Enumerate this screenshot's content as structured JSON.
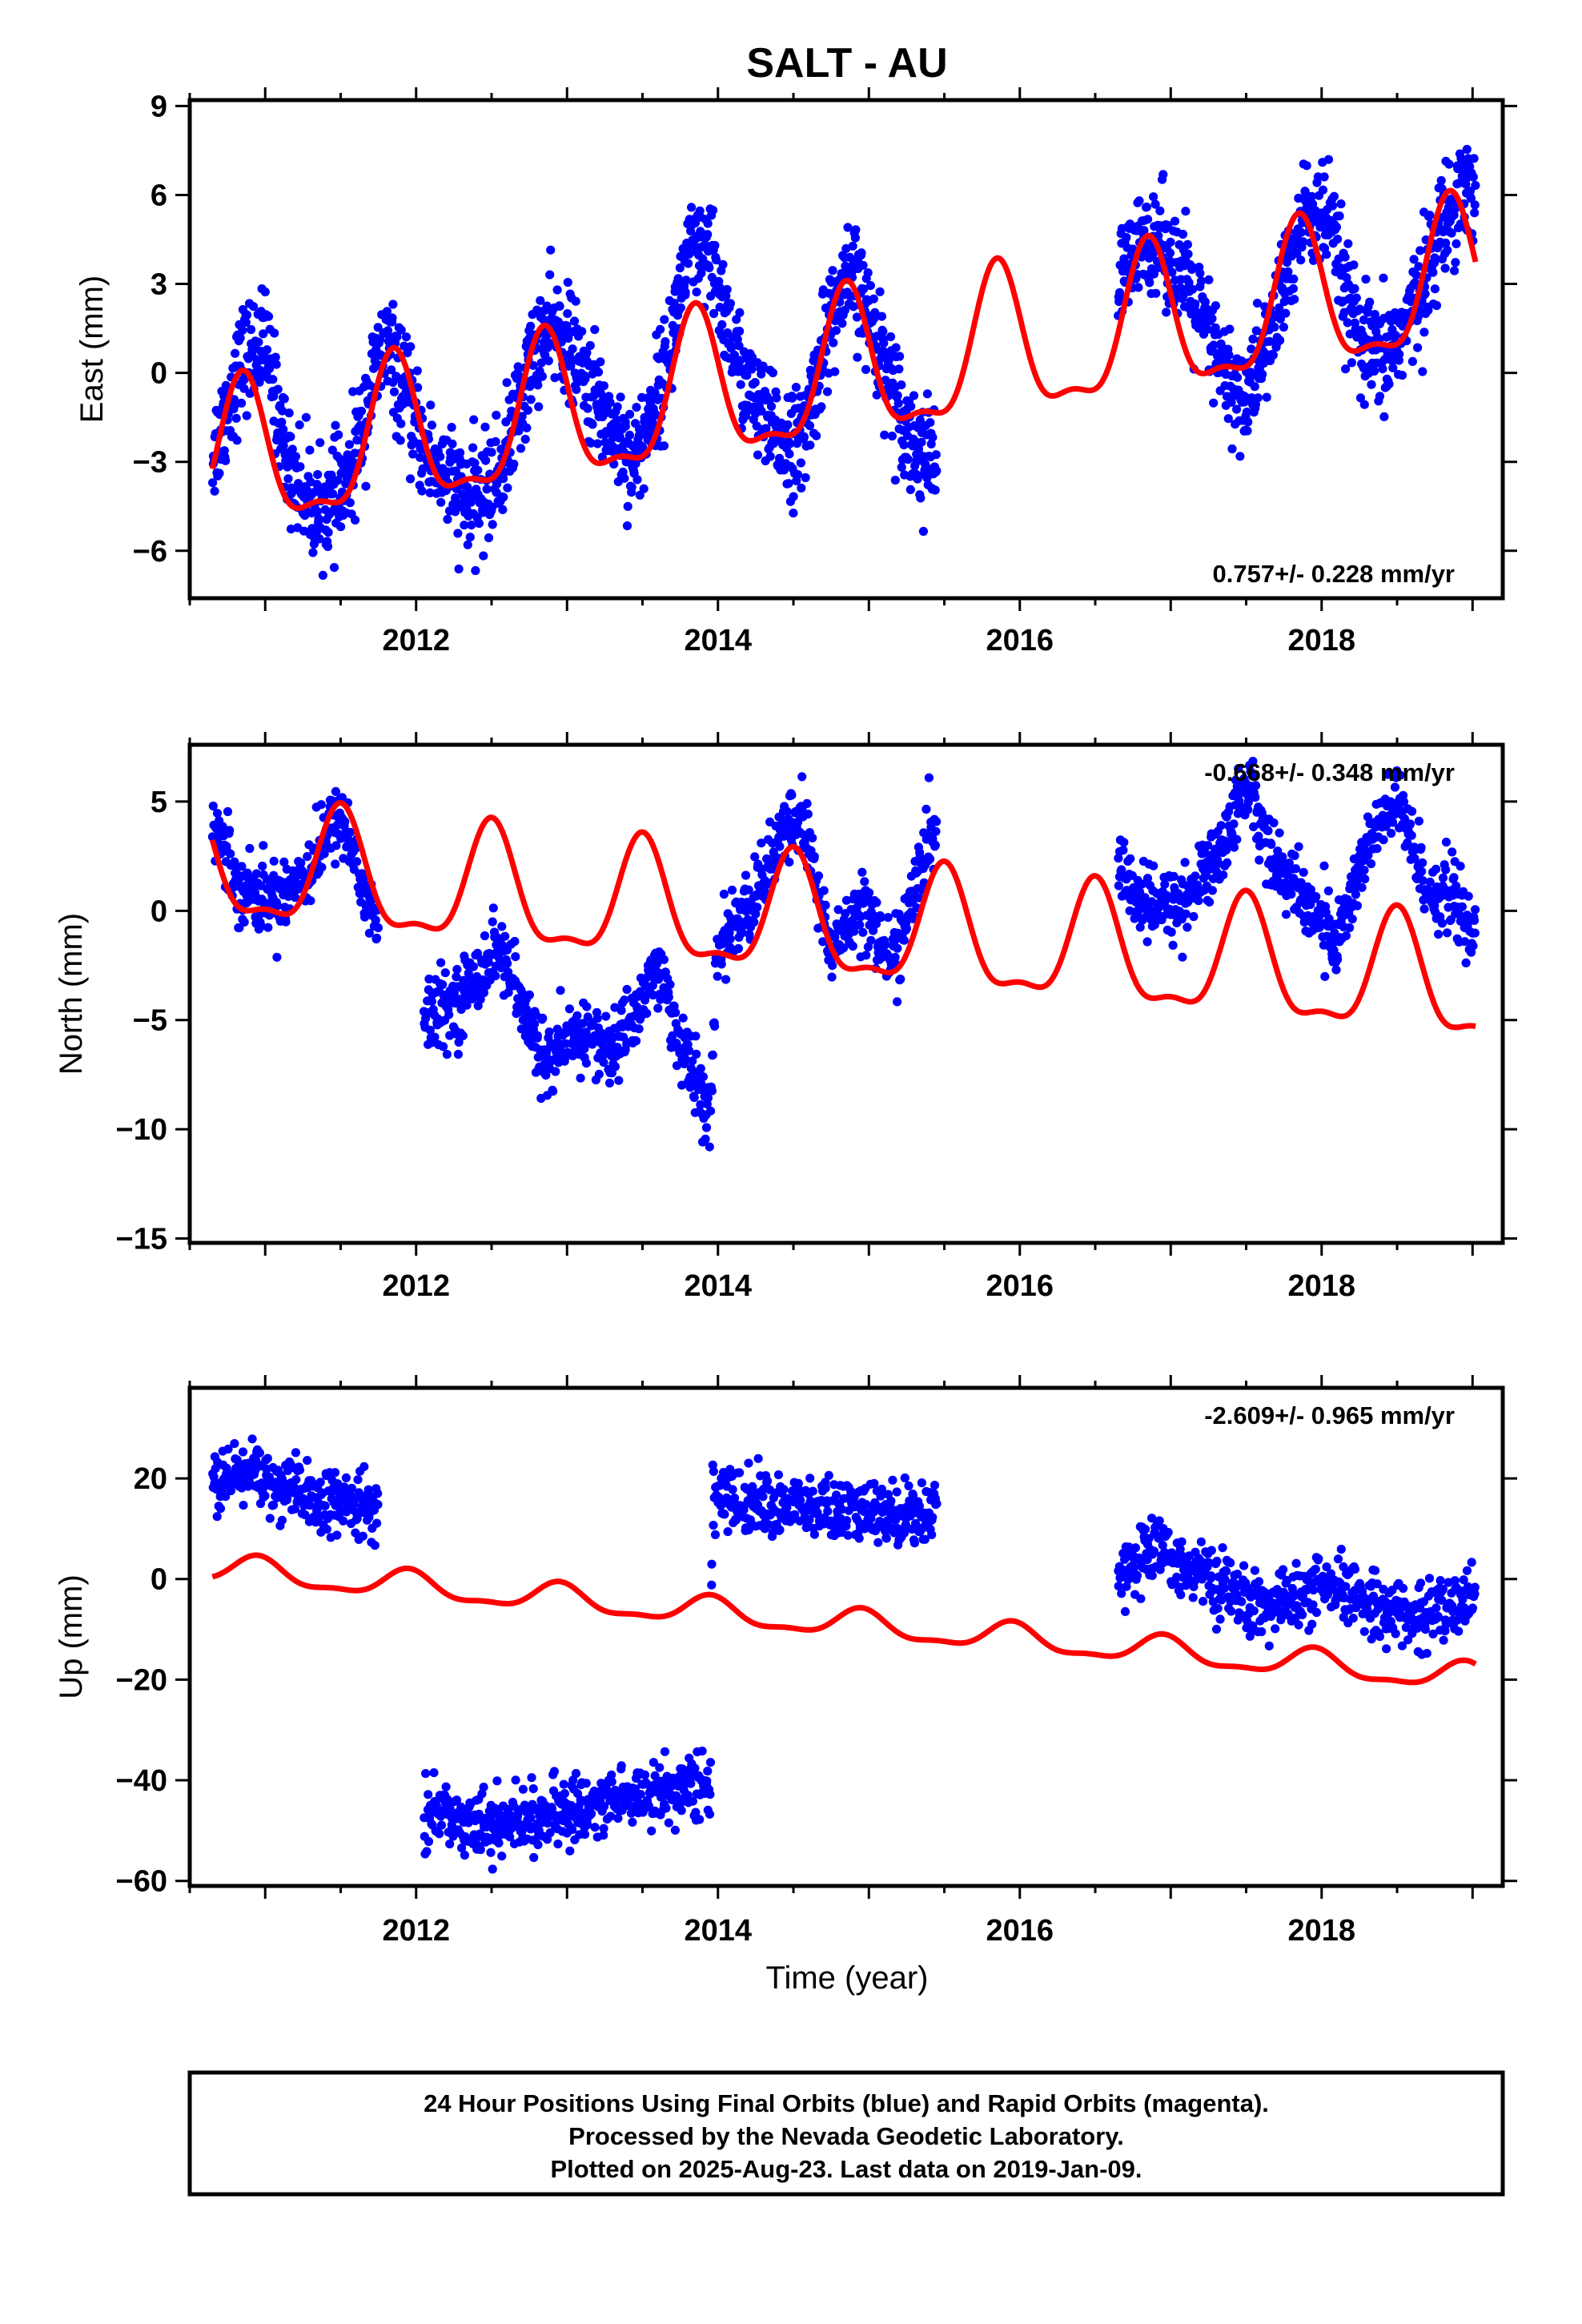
{
  "title": "SALT - AU",
  "xlabel": "Time (year)",
  "footer": [
    "24 Hour Positions Using Final Orbits (blue) and Rapid Orbits (magenta).",
    "Processed by the Nevada Geodetic Laboratory.",
    "Plotted on 2025-Aug-23. Last data on 2019-Jan-09."
  ],
  "colors": {
    "points": "#0000ff",
    "model": "#ff0000",
    "frame": "#000000"
  },
  "chart_data": [
    {
      "type": "scatter",
      "ylabel": "East (mm)",
      "rate_text": "0.757+/- 0.228 mm/yr",
      "xlim": [
        2010.5,
        2019.2
      ],
      "ylim": [
        -7.6,
        9.2
      ],
      "x_ticks": [
        2012,
        2014,
        2016,
        2018
      ],
      "y_ticks": [
        -6,
        -3,
        0,
        3,
        6,
        9
      ],
      "series": [
        {
          "kind": "points",
          "segments": [
            [
              2010.65,
              2015.45
            ],
            [
              2016.65,
              2019.02
            ]
          ],
          "anchors": [
            [
              2010.65,
              -2.8
            ],
            [
              2010.85,
              0.5
            ],
            [
              2011.0,
              1.0
            ],
            [
              2011.15,
              -3.0
            ],
            [
              2011.35,
              -4.8
            ],
            [
              2011.55,
              -3.8
            ],
            [
              2011.7,
              -0.5
            ],
            [
              2011.8,
              1.0
            ],
            [
              2012.05,
              -2.5
            ],
            [
              2012.35,
              -4.5
            ],
            [
              2012.55,
              -3.5
            ],
            [
              2012.8,
              1.0
            ],
            [
              2012.95,
              1.5
            ],
            [
              2013.2,
              -1.0
            ],
            [
              2013.45,
              -3.0
            ],
            [
              2013.65,
              0.0
            ],
            [
              2013.8,
              4.0
            ],
            [
              2013.95,
              3.8
            ],
            [
              2014.15,
              0.0
            ],
            [
              2014.35,
              -2.0
            ],
            [
              2014.55,
              -2.5
            ],
            [
              2014.75,
              2.0
            ],
            [
              2014.9,
              3.2
            ],
            [
              2015.1,
              0.5
            ],
            [
              2015.3,
              -2.5
            ],
            [
              2015.45,
              -3.0
            ],
            [
              2016.65,
              3.0
            ],
            [
              2016.9,
              4.8
            ],
            [
              2017.1,
              3.0
            ],
            [
              2017.35,
              0.0
            ],
            [
              2017.5,
              -1.0
            ],
            [
              2017.7,
              2.0
            ],
            [
              2017.9,
              5.5
            ],
            [
              2018.05,
              5.0
            ],
            [
              2018.25,
              1.0
            ],
            [
              2018.4,
              0.3
            ],
            [
              2018.6,
              2.0
            ],
            [
              2018.8,
              5.0
            ],
            [
              2018.95,
              6.5
            ],
            [
              2019.02,
              6.0
            ]
          ],
          "spread": 1.2,
          "density": 320
        },
        {
          "kind": "model",
          "line": {
            "start": -3.3,
            "slope": 0.757,
            "t0": 2010.65,
            "seasonal_amplitude": 2.4,
            "peak_phase": 0.85,
            "x_range": [
              2010.65,
              2019.02
            ]
          }
        }
      ]
    },
    {
      "type": "scatter",
      "ylabel": "North (mm)",
      "rate_text": "-0.668+/- 0.348 mm/yr",
      "xlim": [
        2010.5,
        2019.2
      ],
      "ylim": [
        -15.2,
        7.6
      ],
      "x_ticks": [
        2012,
        2014,
        2016,
        2018
      ],
      "y_ticks": [
        -15,
        -10,
        -5,
        0,
        5
      ],
      "series": [
        {
          "kind": "points",
          "segments": [
            [
              2010.65,
              2011.75
            ],
            [
              2012.05,
              2013.95
            ],
            [
              2013.95,
              2015.45
            ],
            [
              2016.65,
              2019.02
            ]
          ],
          "anchors": [
            [
              2010.65,
              4.0
            ],
            [
              2010.85,
              1.0
            ],
            [
              2011.05,
              0.5
            ],
            [
              2011.3,
              2.0
            ],
            [
              2011.5,
              4.5
            ],
            [
              2011.7,
              0.0
            ],
            [
              2012.05,
              -5.0
            ],
            [
              2012.3,
              -4.0
            ],
            [
              2012.55,
              -1.5
            ],
            [
              2012.75,
              -5.5
            ],
            [
              2012.9,
              -7.0
            ],
            [
              2013.1,
              -5.5
            ],
            [
              2013.3,
              -6.5
            ],
            [
              2013.5,
              -4.0
            ],
            [
              2013.6,
              -2.5
            ],
            [
              2013.75,
              -6.0
            ],
            [
              2013.95,
              -9.5
            ],
            [
              2014.0,
              -1.5
            ],
            [
              2014.2,
              0.0
            ],
            [
              2014.4,
              3.0
            ],
            [
              2014.55,
              4.5
            ],
            [
              2014.75,
              -2.0
            ],
            [
              2014.95,
              0.5
            ],
            [
              2015.15,
              -2.5
            ],
            [
              2015.35,
              2.0
            ],
            [
              2015.45,
              4.0
            ],
            [
              2016.65,
              2.0
            ],
            [
              2016.85,
              0.0
            ],
            [
              2017.1,
              0.5
            ],
            [
              2017.35,
              3.0
            ],
            [
              2017.5,
              6.0
            ],
            [
              2017.7,
              2.0
            ],
            [
              2017.9,
              0.5
            ],
            [
              2018.1,
              -1.5
            ],
            [
              2018.3,
              3.0
            ],
            [
              2018.5,
              5.0
            ],
            [
              2018.7,
              1.0
            ],
            [
              2018.9,
              0.5
            ],
            [
              2019.02,
              -1.5
            ]
          ],
          "spread": 1.1,
          "density": 260
        },
        {
          "kind": "model",
          "line": {
            "start": 2.0,
            "slope": -0.668,
            "t0": 2010.65,
            "seasonal_amplitude": 2.6,
            "peak_phase": 0.5,
            "x_range": [
              2010.65,
              2019.02
            ]
          }
        }
      ]
    },
    {
      "type": "scatter",
      "ylabel": "Up (mm)",
      "rate_text": "-2.609+/- 0.965 mm/yr",
      "xlim": [
        2010.5,
        2019.2
      ],
      "ylim": [
        -61,
        38
      ],
      "x_ticks": [
        2012,
        2014,
        2016,
        2018
      ],
      "y_ticks": [
        -60,
        -40,
        -20,
        0,
        20
      ],
      "series": [
        {
          "kind": "points",
          "segments": [
            [
              2010.65,
              2011.75
            ],
            [
              2012.05,
              2013.95
            ],
            [
              2013.95,
              2015.45
            ],
            [
              2016.65,
              2019.02
            ]
          ],
          "anchors": [
            [
              2010.65,
              18
            ],
            [
              2010.9,
              22
            ],
            [
              2011.1,
              18
            ],
            [
              2011.4,
              15
            ],
            [
              2011.75,
              14
            ],
            [
              2012.05,
              -46
            ],
            [
              2012.5,
              -49
            ],
            [
              2012.9,
              -47
            ],
            [
              2013.4,
              -43
            ],
            [
              2013.95,
              -41
            ],
            [
              2013.96,
              16
            ],
            [
              2014.3,
              15
            ],
            [
              2014.9,
              13
            ],
            [
              2015.45,
              13
            ],
            [
              2016.65,
              2
            ],
            [
              2016.9,
              6
            ],
            [
              2017.2,
              1
            ],
            [
              2017.6,
              -6
            ],
            [
              2018.0,
              -2
            ],
            [
              2018.3,
              -4
            ],
            [
              2018.6,
              -8
            ],
            [
              2019.02,
              -4
            ]
          ],
          "spread": 4.2,
          "density": 240
        },
        {
          "kind": "model",
          "line": {
            "start": 2.0,
            "slope": -2.609,
            "t0": 2010.65,
            "seasonal_amplitude": 2.6,
            "peak_phase": 0.95,
            "x_range": [
              2010.65,
              2019.02
            ]
          }
        }
      ]
    }
  ]
}
